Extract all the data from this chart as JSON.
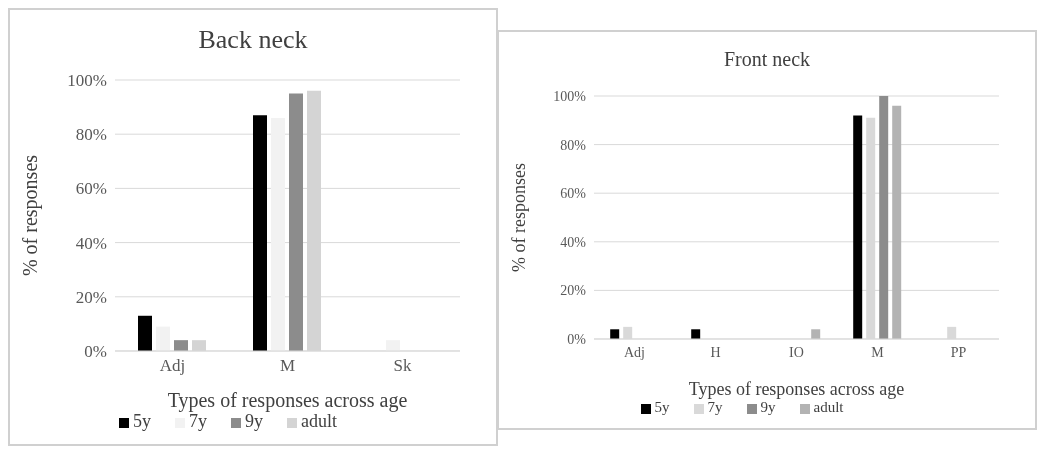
{
  "chart_data": [
    {
      "type": "bar",
      "title": "Back neck",
      "xlabel": "Types of responses across age",
      "ylabel": "% of responses",
      "categories": [
        "Adj",
        "M",
        "Sk"
      ],
      "series": [
        {
          "name": "5y",
          "color": "#000000",
          "values": [
            13,
            87,
            0
          ]
        },
        {
          "name": "7y",
          "color": "#f2f2f2",
          "values": [
            9,
            86,
            4
          ]
        },
        {
          "name": "9y",
          "color": "#8c8c8c",
          "values": [
            4,
            95,
            0
          ]
        },
        {
          "name": "adult",
          "color": "#d4d4d4",
          "values": [
            4,
            96,
            0
          ]
        }
      ],
      "ylim": [
        0,
        100
      ],
      "yticks": [
        {
          "value": 0,
          "label": "0%"
        },
        {
          "value": 20,
          "label": "20%"
        },
        {
          "value": 40,
          "label": "40%"
        },
        {
          "value": 60,
          "label": "60%"
        },
        {
          "value": 80,
          "label": "80%"
        },
        {
          "value": 100,
          "label": "100%"
        }
      ],
      "grid": "y",
      "legend": "bottom"
    },
    {
      "type": "bar",
      "title": "Front neck",
      "xlabel": "Types of responses across age",
      "ylabel": "% of responses",
      "categories": [
        "Adj",
        "H",
        "IO",
        "M",
        "PP"
      ],
      "series": [
        {
          "name": "5y",
          "color": "#000000",
          "values": [
            4,
            4,
            0,
            92,
            0
          ]
        },
        {
          "name": "7y",
          "color": "#d9d9d9",
          "values": [
            5,
            0,
            0,
            91,
            5
          ]
        },
        {
          "name": "9y",
          "color": "#8c8c8c",
          "values": [
            0,
            0,
            0,
            100,
            0
          ]
        },
        {
          "name": "adult",
          "color": "#b3b3b3",
          "values": [
            0,
            0,
            4,
            96,
            0
          ]
        }
      ],
      "ylim": [
        0,
        100
      ],
      "yticks": [
        {
          "value": 0,
          "label": "0%"
        },
        {
          "value": 20,
          "label": "20%"
        },
        {
          "value": 40,
          "label": "40%"
        },
        {
          "value": 60,
          "label": "60%"
        },
        {
          "value": 80,
          "label": "80%"
        },
        {
          "value": 100,
          "label": "100%"
        }
      ],
      "grid": "y",
      "legend": "bottom"
    }
  ]
}
